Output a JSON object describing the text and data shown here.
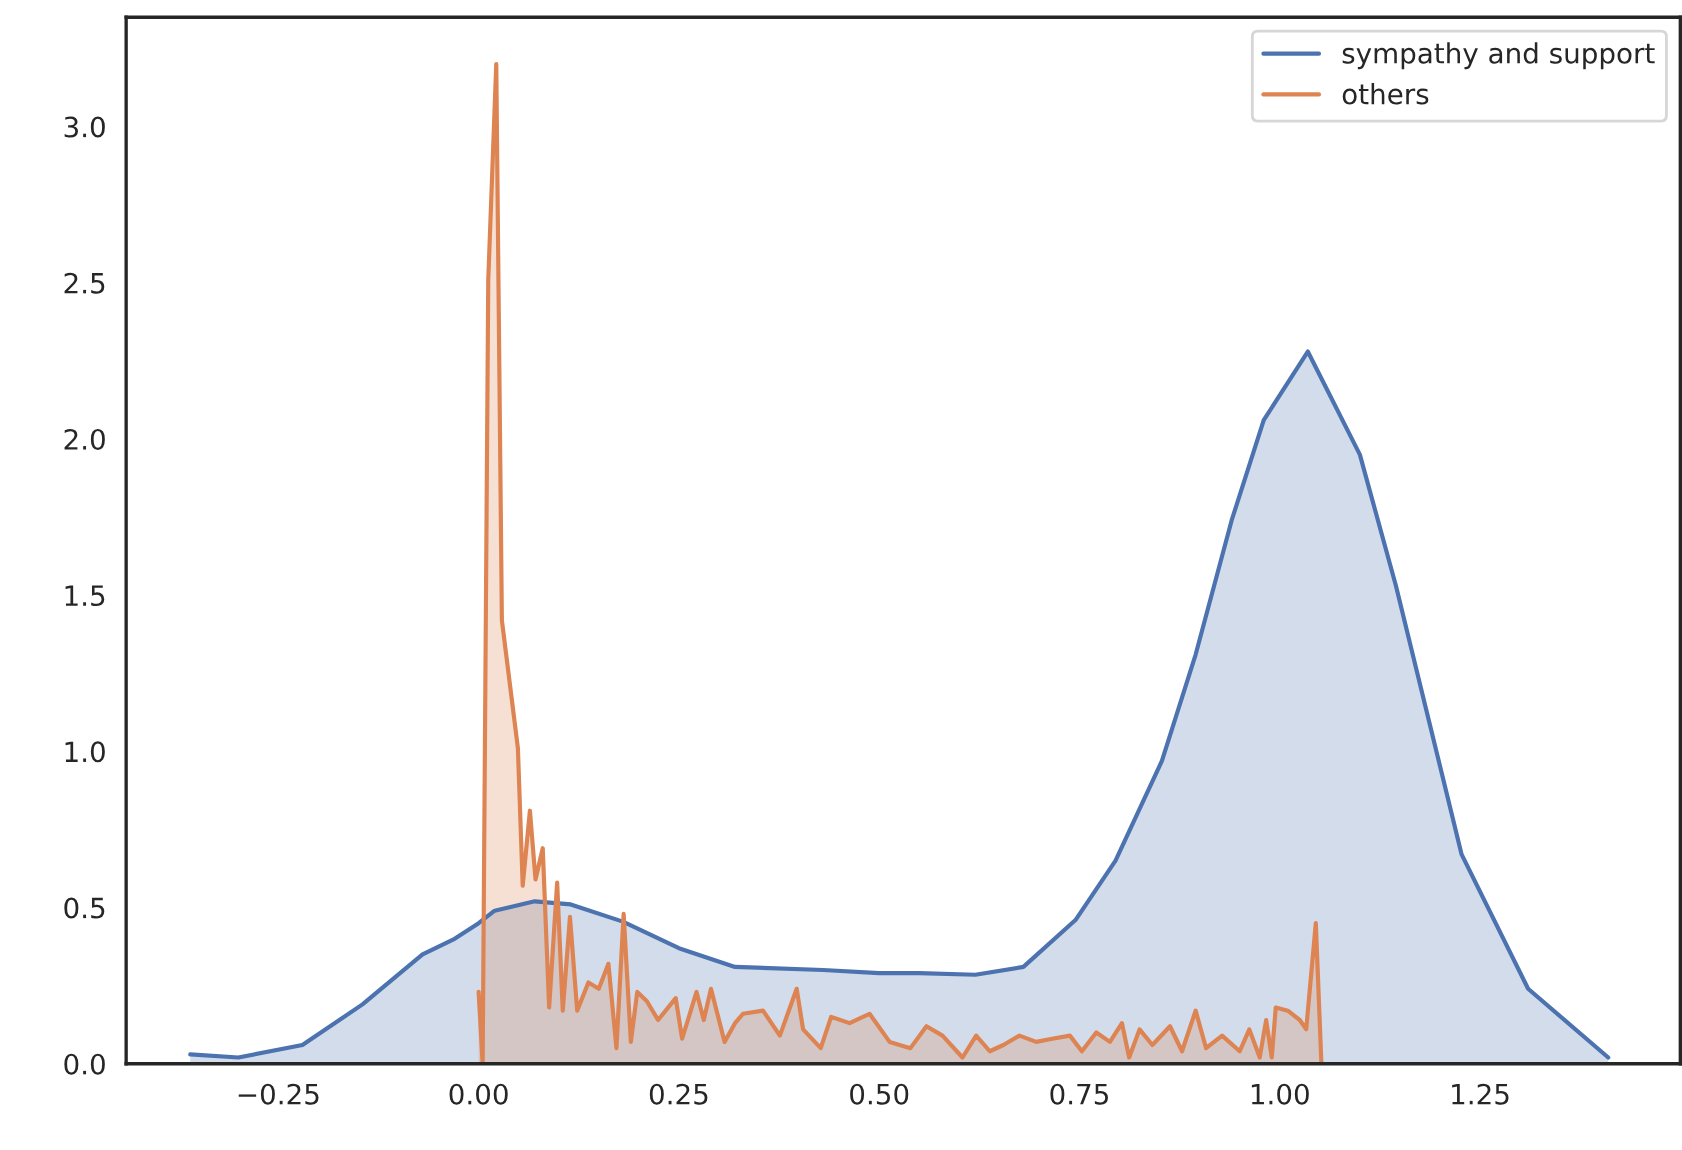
{
  "chart_data": {
    "type": "area",
    "series": [
      {
        "name": "sympathy and support",
        "color": "#4c72b0",
        "x": [
          -0.36,
          -0.3,
          -0.22,
          -0.145,
          -0.07,
          -0.03,
          0.0,
          0.02,
          0.07,
          0.115,
          0.18,
          0.25,
          0.32,
          0.43,
          0.5,
          0.55,
          0.62,
          0.68,
          0.745,
          0.795,
          0.853,
          0.895,
          0.94,
          0.98,
          1.035,
          1.1,
          1.145,
          1.227,
          1.31,
          1.41
        ],
        "values": [
          0.03,
          0.02,
          0.06,
          0.19,
          0.35,
          0.4,
          0.45,
          0.49,
          0.52,
          0.51,
          0.455,
          0.37,
          0.31,
          0.3,
          0.29,
          0.29,
          0.285,
          0.31,
          0.46,
          0.65,
          0.97,
          1.31,
          1.74,
          2.06,
          2.28,
          1.95,
          1.53,
          0.67,
          0.24,
          0.02
        ]
      },
      {
        "name": "others",
        "color": "#dd8452",
        "x": [
          0.0,
          0.005,
          0.012,
          0.022,
          0.029,
          0.049,
          0.055,
          0.064,
          0.071,
          0.08,
          0.088,
          0.098,
          0.105,
          0.114,
          0.123,
          0.137,
          0.15,
          0.162,
          0.172,
          0.181,
          0.19,
          0.198,
          0.21,
          0.224,
          0.246,
          0.254,
          0.272,
          0.281,
          0.29,
          0.307,
          0.32,
          0.33,
          0.355,
          0.376,
          0.397,
          0.405,
          0.427,
          0.44,
          0.463,
          0.488,
          0.513,
          0.539,
          0.559,
          0.579,
          0.604,
          0.621,
          0.638,
          0.655,
          0.675,
          0.696,
          0.716,
          0.738,
          0.753,
          0.771,
          0.788,
          0.803,
          0.812,
          0.825,
          0.841,
          0.863,
          0.878,
          0.895,
          0.908,
          0.928,
          0.95,
          0.962,
          0.975,
          0.983,
          0.99,
          0.995,
          1.01,
          1.025,
          1.033,
          1.045,
          1.052
        ],
        "values": [
          0.23,
          0.0,
          2.51,
          3.2,
          1.42,
          1.01,
          0.57,
          0.81,
          0.59,
          0.69,
          0.18,
          0.58,
          0.17,
          0.47,
          0.17,
          0.26,
          0.24,
          0.32,
          0.05,
          0.48,
          0.07,
          0.23,
          0.2,
          0.14,
          0.21,
          0.08,
          0.23,
          0.14,
          0.24,
          0.07,
          0.13,
          0.16,
          0.17,
          0.09,
          0.24,
          0.11,
          0.05,
          0.15,
          0.13,
          0.16,
          0.07,
          0.05,
          0.12,
          0.09,
          0.02,
          0.09,
          0.04,
          0.06,
          0.09,
          0.07,
          0.08,
          0.09,
          0.04,
          0.1,
          0.07,
          0.13,
          0.02,
          0.11,
          0.06,
          0.12,
          0.04,
          0.17,
          0.05,
          0.09,
          0.04,
          0.11,
          0.02,
          0.14,
          0.02,
          0.18,
          0.17,
          0.14,
          0.11,
          0.45,
          0.0
        ]
      }
    ],
    "xlim": [
      -0.44,
      1.5
    ],
    "xticks": [
      {
        "value": -0.25,
        "label": "−0.25"
      },
      {
        "value": 0.0,
        "label": "0.00"
      },
      {
        "value": 0.25,
        "label": "0.25"
      },
      {
        "value": 0.5,
        "label": "0.50"
      },
      {
        "value": 0.75,
        "label": "0.75"
      },
      {
        "value": 1.0,
        "label": "1.00"
      },
      {
        "value": 1.25,
        "label": "1.25"
      }
    ],
    "ylim": [
      0,
      3.35
    ],
    "yticks": [
      {
        "value": 0,
        "label": "0.0"
      },
      0.5,
      {
        "value": 1,
        "label": "1.0"
      },
      1.5,
      {
        "value": 2,
        "label": "2.0"
      },
      2.5,
      {
        "value": 3,
        "label": "3.0"
      }
    ],
    "legend": "top right",
    "grid": false
  }
}
